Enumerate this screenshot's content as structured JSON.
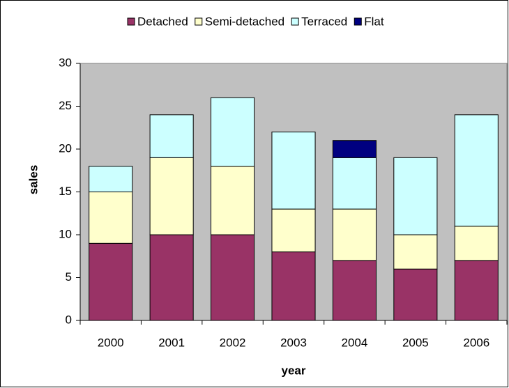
{
  "chart_data": {
    "type": "stacked_bar",
    "x_label": "year",
    "y_label": "sales",
    "categories": [
      "2000",
      "2001",
      "2002",
      "2003",
      "2004",
      "2005",
      "2006"
    ],
    "series": [
      {
        "name": "Detached",
        "color": "#993366",
        "values": [
          9,
          10,
          10,
          8,
          7,
          6,
          7
        ]
      },
      {
        "name": "Semi-detached",
        "color": "#ffffcc",
        "values": [
          6,
          9,
          8,
          5,
          6,
          4,
          4
        ]
      },
      {
        "name": "Terraced",
        "color": "#ccffff",
        "values": [
          3,
          5,
          8,
          9,
          6,
          9,
          13
        ]
      },
      {
        "name": "Flat",
        "color": "#000080",
        "values": [
          0,
          0,
          0,
          0,
          2,
          0,
          0
        ]
      }
    ],
    "ylim": [
      0,
      30
    ],
    "yticks": [
      0,
      5,
      10,
      15,
      20,
      25,
      30
    ],
    "grid": false,
    "legend": "top",
    "plot_background": "#c0c0c0"
  }
}
